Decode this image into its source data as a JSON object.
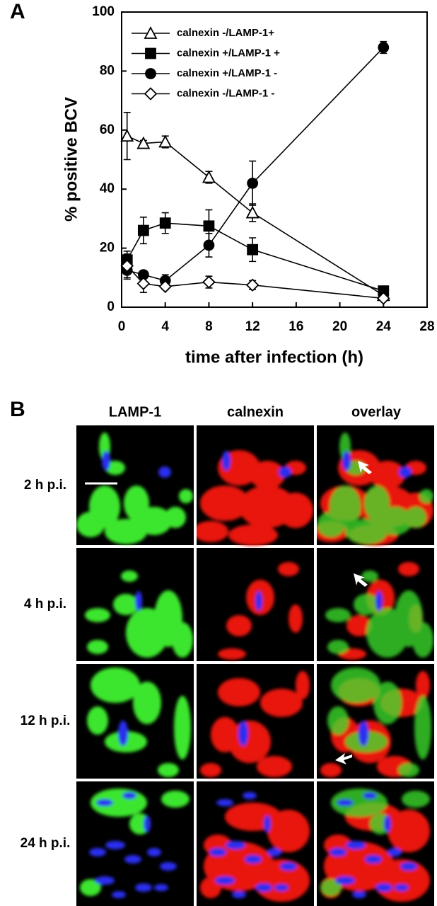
{
  "panel_labels": [
    "A",
    "B"
  ],
  "chart_data": {
    "type": "line",
    "x_label": "time after infection (h)",
    "y_label": "% positive BCV",
    "xlim": [
      0,
      28
    ],
    "xticks": [
      0,
      4,
      8,
      12,
      16,
      20,
      24,
      28
    ],
    "ylim": [
      0,
      100
    ],
    "yticks": [
      0,
      20,
      40,
      60,
      80,
      100
    ],
    "legend": "upper left",
    "grid": false,
    "x": [
      0.5,
      2,
      4,
      8,
      12,
      24
    ],
    "series": [
      {
        "name": "calnexin -/LAMP-1+",
        "color": "#000000",
        "marker": "triangle",
        "filled": false,
        "values": [
          58,
          55.5,
          56,
          44,
          32,
          4
        ],
        "errors": [
          8,
          1,
          2,
          2,
          3,
          1
        ]
      },
      {
        "name": "calnexin +/LAMP-1 +",
        "color": "#000000",
        "marker": "square",
        "filled": true,
        "values": [
          16,
          26,
          28.5,
          27.5,
          19.5,
          5.5
        ],
        "errors": [
          3,
          4.5,
          3.5,
          5.5,
          4,
          1
        ]
      },
      {
        "name": "calnexin +/LAMP-1 -",
        "color": "#000000",
        "marker": "circle",
        "filled": true,
        "values": [
          12.5,
          11,
          9,
          21,
          42,
          88
        ],
        "errors": [
          3,
          1,
          2,
          4,
          7.5,
          2
        ]
      },
      {
        "name": "calnexin -/LAMP-1 -",
        "color": "#000000",
        "marker": "diamond",
        "filled": false,
        "values": [
          14,
          8,
          7,
          8.5,
          7.5,
          3
        ],
        "errors": [
          4,
          3,
          1,
          2,
          1.5,
          0.5
        ]
      }
    ]
  },
  "micrographs": {
    "columns": [
      "LAMP-1",
      "calnexin",
      "overlay"
    ],
    "rows": [
      "2 h p.i.",
      "4 h p.i.",
      "12 h p.i.",
      "24 h p.i."
    ]
  }
}
